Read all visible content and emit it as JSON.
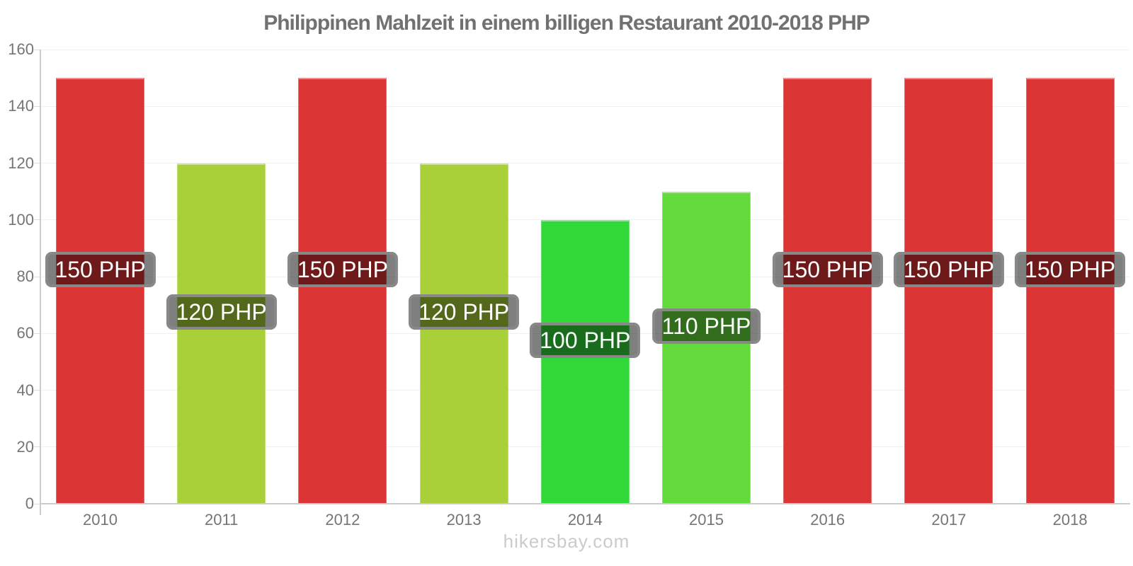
{
  "chart_data": {
    "type": "bar",
    "title": "Philippinen Mahlzeit in einem billigen Restaurant 2010-2018 PHP",
    "categories": [
      "2010",
      "2011",
      "2012",
      "2013",
      "2014",
      "2015",
      "2016",
      "2017",
      "2018"
    ],
    "values": [
      150,
      120,
      150,
      120,
      100,
      110,
      150,
      150,
      150
    ],
    "bar_labels": [
      "150 PHP",
      "120 PHP",
      "150 PHP",
      "120 PHP",
      "100 PHP",
      "110 PHP",
      "150 PHP",
      "150 PHP",
      "150 PHP"
    ],
    "bar_colors": [
      "#DC3535",
      "#A9D038",
      "#DC3535",
      "#A9D038",
      "#30D838",
      "#64DB3C",
      "#DC3535",
      "#DC3535",
      "#DC3535"
    ],
    "unit": "PHP",
    "xlabel": "",
    "ylabel": "",
    "ylim": [
      0,
      160
    ],
    "yticks": [
      0,
      20,
      40,
      60,
      80,
      100,
      120,
      140,
      160
    ],
    "grid": true,
    "legend_position": "none"
  },
  "footer": {
    "text": "hikersbay.com"
  },
  "colors": {
    "red_bar": "#DC3535",
    "yellow_green_bar": "#A9D038",
    "green_bar": "#30D838",
    "light_green_bar": "#64DB3C",
    "title_text": "#717171",
    "axis_text": "#757575",
    "axis_line": "#CCCCCC",
    "gridline": "#F0F0F0",
    "value_label_bg": "rgba(0,0,0,0.5)",
    "value_label_border": "#888888",
    "value_label_text": "#FFFFFF",
    "watermark": "#CBCBCB"
  }
}
